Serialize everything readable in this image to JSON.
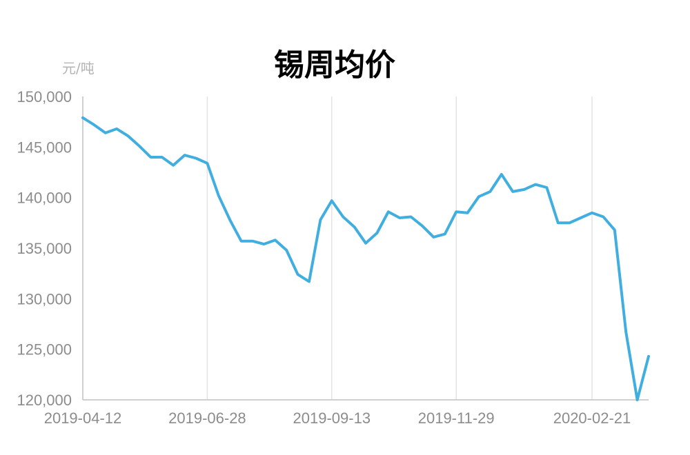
{
  "chart_data": {
    "type": "line",
    "title": "锡周均价",
    "unit_label": "元/吨",
    "xlabel": "",
    "ylabel": "",
    "ylim": [
      120000,
      150000
    ],
    "yticks": [
      120000,
      125000,
      130000,
      135000,
      140000,
      145000,
      150000
    ],
    "ytick_labels": [
      "120,000",
      "125,000",
      "130,000",
      "135,000",
      "140,000",
      "145,000",
      "150,000"
    ],
    "x_tick_labels": [
      "2019-04-12",
      "2019-06-28",
      "2019-09-13",
      "2019-11-29",
      "2020-02-21"
    ],
    "grid": "vertical",
    "legend": "none",
    "line_color": "#41aee0",
    "x": [
      "2019-04-12",
      "2019-04-19",
      "2019-04-26",
      "2019-05-03",
      "2019-05-10",
      "2019-05-17",
      "2019-05-24",
      "2019-05-31",
      "2019-06-07",
      "2019-06-14",
      "2019-06-21",
      "2019-06-28",
      "2019-07-05",
      "2019-07-12",
      "2019-07-19",
      "2019-07-26",
      "2019-08-02",
      "2019-08-09",
      "2019-08-16",
      "2019-08-23",
      "2019-08-30",
      "2019-09-06",
      "2019-09-13",
      "2019-09-20",
      "2019-09-27",
      "2019-10-04",
      "2019-10-11",
      "2019-10-18",
      "2019-10-25",
      "2019-11-01",
      "2019-11-08",
      "2019-11-15",
      "2019-11-22",
      "2019-11-29",
      "2019-12-06",
      "2019-12-13",
      "2019-12-20",
      "2019-12-27",
      "2020-01-03",
      "2020-01-10",
      "2020-01-17",
      "2020-01-24",
      "2020-01-31",
      "2020-02-07",
      "2020-02-14",
      "2020-02-21",
      "2020-02-28",
      "2020-03-06",
      "2020-03-13",
      "2020-03-20",
      "2020-03-27"
    ],
    "series": [
      {
        "values": [
          147900,
          147200,
          146400,
          146800,
          146100,
          145100,
          144000,
          144000,
          143200,
          144200,
          143900,
          143400,
          140200,
          137800,
          135700,
          135700,
          135400,
          135800,
          134800,
          132400,
          131700,
          137800,
          139700,
          138100,
          137100,
          135500,
          136500,
          138600,
          138000,
          138100,
          137200,
          136100,
          136400,
          138600,
          138500,
          140100,
          140600,
          142300,
          140600,
          140800,
          141300,
          141000,
          137500,
          137500,
          138000,
          138500,
          138100,
          136800,
          126700,
          120000,
          124300
        ]
      }
    ]
  }
}
